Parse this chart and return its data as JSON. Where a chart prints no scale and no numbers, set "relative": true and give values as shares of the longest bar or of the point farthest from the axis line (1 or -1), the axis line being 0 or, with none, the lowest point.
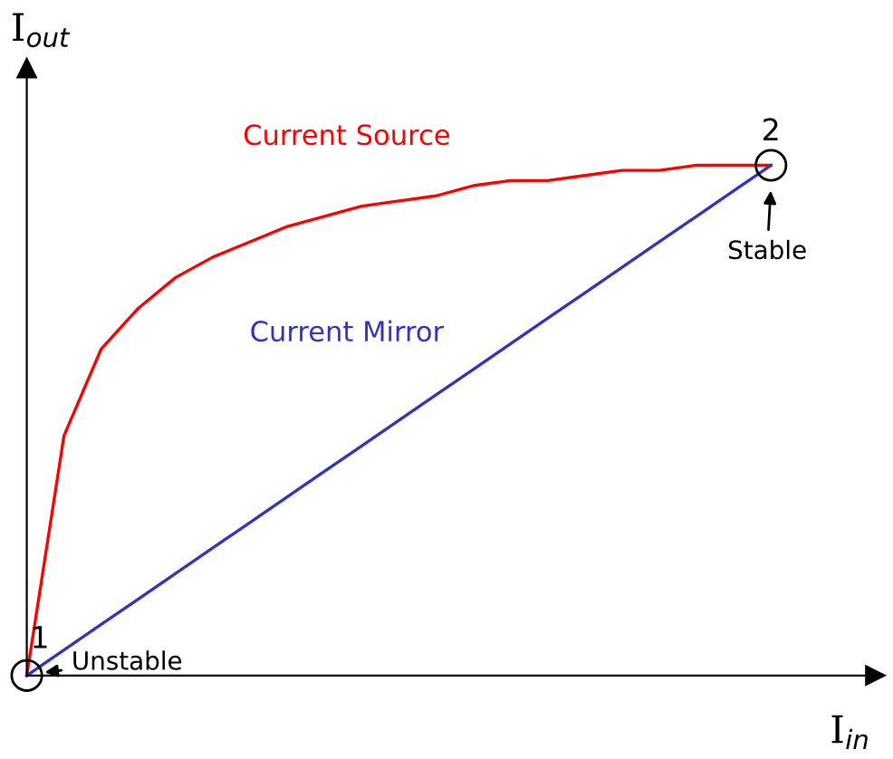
{
  "chart_data": {
    "type": "line",
    "relative": true,
    "xlabel": "I$_{in}$",
    "ylabel": "I$_{out}$",
    "categories": [
      null,
      null,
      null,
      null,
      null,
      null,
      null,
      null,
      null,
      null,
      null,
      null,
      null,
      null,
      null,
      null,
      null,
      null,
      null,
      null,
      null
    ],
    "series": [
      {
        "name": "Current Source",
        "color": "#ff0000",
        "values": [
          0,
          0.47,
          0.64,
          0.72,
          0.78,
          0.82,
          0.85,
          0.88,
          0.9,
          0.92,
          0.93,
          0.94,
          0.96,
          0.97,
          0.97,
          0.98,
          0.99,
          0.99,
          1.0,
          1.0,
          1.0
        ]
      },
      {
        "name": "Current Mirror",
        "color": "#3333bb",
        "values": [
          0,
          0.05,
          0.1,
          0.15,
          0.2,
          0.25,
          0.3,
          0.35,
          0.4,
          0.45,
          0.5,
          0.55,
          0.6,
          0.65,
          0.7,
          0.75,
          0.8,
          0.85,
          0.9,
          0.95,
          1.0
        ]
      }
    ],
    "annotations": [
      "1",
      "Unstable",
      "2",
      "Stable"
    ],
    "marker": "none",
    "line_style": "solid"
  }
}
